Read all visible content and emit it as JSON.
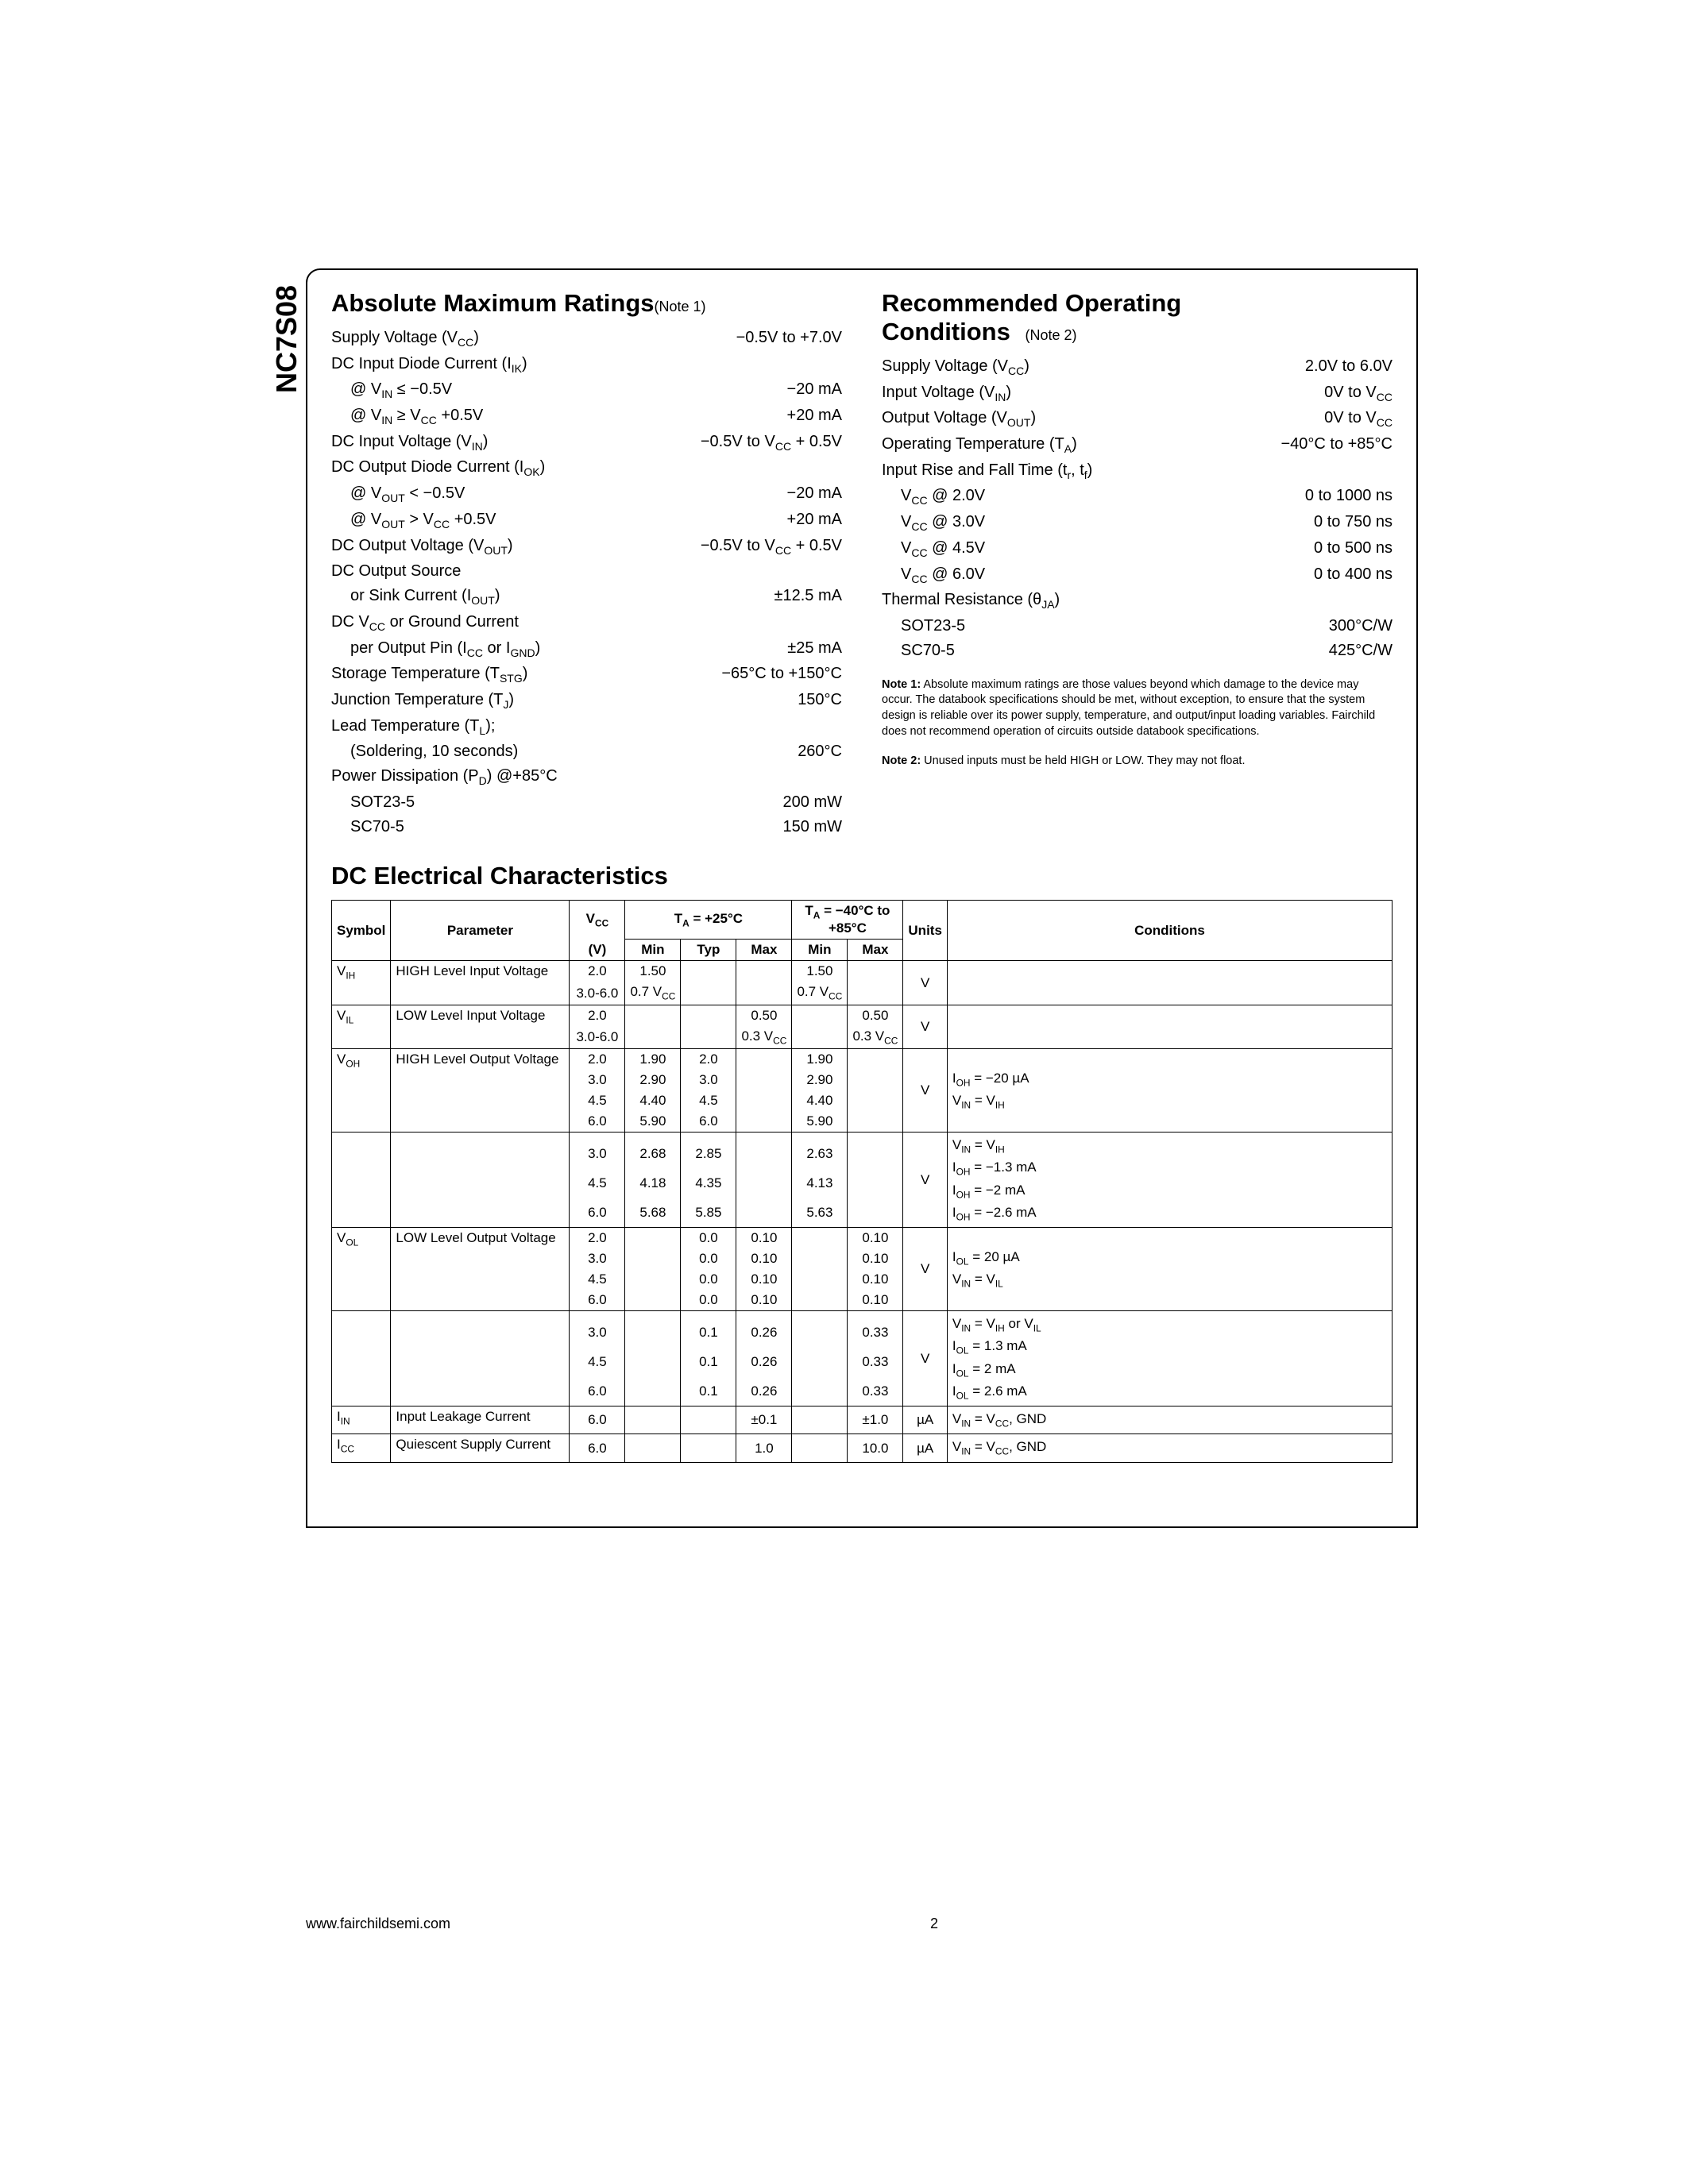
{
  "partNumber": "NC7S08",
  "footer": {
    "url": "www.fairchildsemi.com",
    "page": "2"
  },
  "sections": {
    "amr": {
      "title": "Absolute Maximum Ratings",
      "noteRef": "(Note 1)",
      "rows": [
        {
          "label": "Supply Voltage (V<sub>CC</sub>)",
          "value": "−0.5V to +7.0V"
        },
        {
          "label": "DC Input Diode Current (I<sub>IK</sub>)",
          "value": ""
        },
        {
          "label": "@ V<sub>IN</sub> ≤ −0.5V",
          "value": "−20 mA",
          "indent": true
        },
        {
          "label": "@ V<sub>IN</sub> ≥ V<sub>CC</sub> +0.5V",
          "value": "+20 mA",
          "indent": true
        },
        {
          "label": "DC Input Voltage (V<sub>IN</sub>)",
          "value": "−0.5V to V<sub>CC</sub> + 0.5V"
        },
        {
          "label": "DC Output Diode Current (I<sub>OK</sub>)",
          "value": ""
        },
        {
          "label": "@ V<sub>OUT</sub> < −0.5V",
          "value": "−20 mA",
          "indent": true
        },
        {
          "label": "@ V<sub>OUT</sub> > V<sub>CC</sub> +0.5V",
          "value": "+20 mA",
          "indent": true
        },
        {
          "label": "DC Output Voltage (V<sub>OUT</sub>)",
          "value": "−0.5V to V<sub>CC</sub> + 0.5V"
        },
        {
          "label": "DC Output Source",
          "value": ""
        },
        {
          "label": "or Sink Current (I<sub>OUT</sub>)",
          "value": "±12.5 mA",
          "indent": true
        },
        {
          "label": "DC V<sub>CC</sub> or Ground Current",
          "value": ""
        },
        {
          "label": "per Output Pin (I<sub>CC</sub> or I<sub>GND</sub>)",
          "value": "±25 mA",
          "indent": true
        },
        {
          "label": "Storage Temperature (T<sub>STG</sub>)",
          "value": "−65°C to +150°C"
        },
        {
          "label": "Junction Temperature (T<sub>J</sub>)",
          "value": "150°C"
        },
        {
          "label": "Lead Temperature (T<sub>L</sub>);",
          "value": ""
        },
        {
          "label": "(Soldering, 10 seconds)",
          "value": "260°C",
          "indent": true
        },
        {
          "label": "Power Dissipation (P<sub>D</sub>) @+85°C",
          "value": ""
        },
        {
          "label": "SOT23-5",
          "value": "200 mW",
          "indent": true
        },
        {
          "label": "SC70-5",
          "value": "150 mW",
          "indent": true
        }
      ]
    },
    "roc": {
      "titleLine1": "Recommended Operating",
      "titleLine2": "Conditions",
      "noteRef": "(Note 2)",
      "rows": [
        {
          "label": "Supply Voltage (V<sub>CC</sub>)",
          "value": "2.0V to 6.0V"
        },
        {
          "label": "Input Voltage (V<sub>IN</sub>)",
          "value": "0V to V<sub>CC</sub>"
        },
        {
          "label": "Output Voltage (V<sub>OUT</sub>)",
          "value": "0V to V<sub>CC</sub>"
        },
        {
          "label": "Operating Temperature (T<sub>A</sub>)",
          "value": "−40°C to +85°C"
        },
        {
          "label": "Input Rise and Fall Time (t<sub>r</sub>, t<sub>f</sub>)",
          "value": ""
        },
        {
          "label": "V<sub>CC</sub> @ 2.0V",
          "value": "0 to 1000 ns",
          "indent": true
        },
        {
          "label": "V<sub>CC</sub> @ 3.0V",
          "value": "0 to 750 ns",
          "indent": true
        },
        {
          "label": "V<sub>CC</sub> @ 4.5V",
          "value": "0 to 500 ns",
          "indent": true
        },
        {
          "label": "V<sub>CC</sub> @ 6.0V",
          "value": "0 to 400 ns",
          "indent": true
        },
        {
          "label": "Thermal Resistance (θ<sub>JA</sub>)",
          "value": ""
        },
        {
          "label": "SOT23-5",
          "value": "300°C/W",
          "indent": true
        },
        {
          "label": "SC70-5",
          "value": "425°C/W",
          "indent": true
        }
      ],
      "notes": [
        {
          "label": "Note 1:",
          "text": "Absolute maximum ratings are those values beyond which damage to the device may occur. The databook specifications should be met, without exception, to ensure that the system design is reliable over its power supply, temperature, and output/input loading variables. Fairchild does not recommend operation of circuits outside databook specifications."
        },
        {
          "label": "Note 2:",
          "text": "Unused inputs must be held HIGH or LOW. They may not float."
        }
      ]
    },
    "dc": {
      "title": "DC Electrical Characteristics",
      "headers": {
        "symbol": "Symbol",
        "parameter": "Parameter",
        "vcc": "V<sub>CC</sub>",
        "vccU": "(V)",
        "ta25": "T<sub>A</sub> = +25°C",
        "taRange": "T<sub>A</sub> = −40°C to +85°C",
        "min": "Min",
        "typ": "Typ",
        "max": "Max",
        "units": "Units",
        "cond": "Conditions"
      },
      "groups": [
        {
          "symbol": "V<sub>IH</sub>",
          "param": "HIGH Level Input Voltage",
          "units": "V",
          "cond": "",
          "rows": [
            {
              "vcc": "2.0",
              "min25": "1.50",
              "typ25": "",
              "max25": "",
              "minR": "1.50",
              "maxR": ""
            },
            {
              "vcc": "3.0-6.0",
              "min25": "0.7 V<sub>CC</sub>",
              "typ25": "",
              "max25": "",
              "minR": "0.7 V<sub>CC</sub>",
              "maxR": ""
            }
          ]
        },
        {
          "symbol": "V<sub>IL</sub>",
          "param": "LOW Level Input Voltage",
          "units": "V",
          "cond": "",
          "rows": [
            {
              "vcc": "2.0",
              "min25": "",
              "typ25": "",
              "max25": "0.50",
              "minR": "",
              "maxR": "0.50"
            },
            {
              "vcc": "3.0-6.0",
              "min25": "",
              "typ25": "",
              "max25": "0.3 V<sub>CC</sub>",
              "minR": "",
              "maxR": "0.3 V<sub>CC</sub>"
            }
          ]
        },
        {
          "symbol": "V<sub>OH</sub>",
          "param": "HIGH Level Output Voltage",
          "units": "V",
          "cond": "I<sub>OH</sub> = −20 µA<br>V<sub>IN</sub> = V<sub>IH</sub>",
          "rows": [
            {
              "vcc": "2.0",
              "min25": "1.90",
              "typ25": "2.0",
              "max25": "",
              "minR": "1.90",
              "maxR": ""
            },
            {
              "vcc": "3.0",
              "min25": "2.90",
              "typ25": "3.0",
              "max25": "",
              "minR": "2.90",
              "maxR": ""
            },
            {
              "vcc": "4.5",
              "min25": "4.40",
              "typ25": "4.5",
              "max25": "",
              "minR": "4.40",
              "maxR": ""
            },
            {
              "vcc": "6.0",
              "min25": "5.90",
              "typ25": "6.0",
              "max25": "",
              "minR": "5.90",
              "maxR": ""
            }
          ]
        },
        {
          "symbol": "",
          "param": "",
          "units": "V",
          "cond": "V<sub>IN</sub> = V<sub>IH</sub><br>I<sub>OH</sub> = −1.3 mA<br>I<sub>OH</sub> = −2 mA<br>I<sub>OH</sub> = −2.6 mA",
          "continuation": true,
          "rows": [
            {
              "vcc": "",
              "min25": "",
              "typ25": "",
              "max25": "",
              "minR": "",
              "maxR": ""
            },
            {
              "vcc": "3.0",
              "min25": "2.68",
              "typ25": "2.85",
              "max25": "",
              "minR": "2.63",
              "maxR": ""
            },
            {
              "vcc": "4.5",
              "min25": "4.18",
              "typ25": "4.35",
              "max25": "",
              "minR": "4.13",
              "maxR": ""
            },
            {
              "vcc": "6.0",
              "min25": "5.68",
              "typ25": "5.85",
              "max25": "",
              "minR": "5.63",
              "maxR": ""
            }
          ]
        },
        {
          "symbol": "V<sub>OL</sub>",
          "param": "LOW Level Output Voltage",
          "units": "V",
          "cond": "I<sub>OL</sub> = 20 µA<br>V<sub>IN</sub> = V<sub>IL</sub>",
          "rows": [
            {
              "vcc": "2.0",
              "min25": "",
              "typ25": "0.0",
              "max25": "0.10",
              "minR": "",
              "maxR": "0.10"
            },
            {
              "vcc": "3.0",
              "min25": "",
              "typ25": "0.0",
              "max25": "0.10",
              "minR": "",
              "maxR": "0.10"
            },
            {
              "vcc": "4.5",
              "min25": "",
              "typ25": "0.0",
              "max25": "0.10",
              "minR": "",
              "maxR": "0.10"
            },
            {
              "vcc": "6.0",
              "min25": "",
              "typ25": "0.0",
              "max25": "0.10",
              "minR": "",
              "maxR": "0.10"
            }
          ]
        },
        {
          "symbol": "",
          "param": "",
          "units": "V",
          "cond": "V<sub>IN</sub> = V<sub>IH</sub> or V<sub>IL</sub><br>I<sub>OL</sub> = 1.3 mA<br>I<sub>OL</sub> = 2 mA<br>I<sub>OL</sub> = 2.6 mA",
          "continuation": true,
          "rows": [
            {
              "vcc": "",
              "min25": "",
              "typ25": "",
              "max25": "",
              "minR": "",
              "maxR": ""
            },
            {
              "vcc": "3.0",
              "min25": "",
              "typ25": "0.1",
              "max25": "0.26",
              "minR": "",
              "maxR": "0.33"
            },
            {
              "vcc": "4.5",
              "min25": "",
              "typ25": "0.1",
              "max25": "0.26",
              "minR": "",
              "maxR": "0.33"
            },
            {
              "vcc": "6.0",
              "min25": "",
              "typ25": "0.1",
              "max25": "0.26",
              "minR": "",
              "maxR": "0.33"
            }
          ]
        },
        {
          "symbol": "I<sub>IN</sub>",
          "param": "Input Leakage Current",
          "units": "µA",
          "cond": "V<sub>IN</sub> = V<sub>CC</sub>, GND",
          "rows": [
            {
              "vcc": "6.0",
              "min25": "",
              "typ25": "",
              "max25": "±0.1",
              "minR": "",
              "maxR": "±1.0"
            }
          ]
        },
        {
          "symbol": "I<sub>CC</sub>",
          "param": "Quiescent Supply Current",
          "units": "µA",
          "cond": "V<sub>IN</sub> = V<sub>CC</sub>, GND",
          "rows": [
            {
              "vcc": "6.0",
              "min25": "",
              "typ25": "",
              "max25": "1.0",
              "minR": "",
              "maxR": "10.0"
            }
          ]
        }
      ]
    }
  }
}
